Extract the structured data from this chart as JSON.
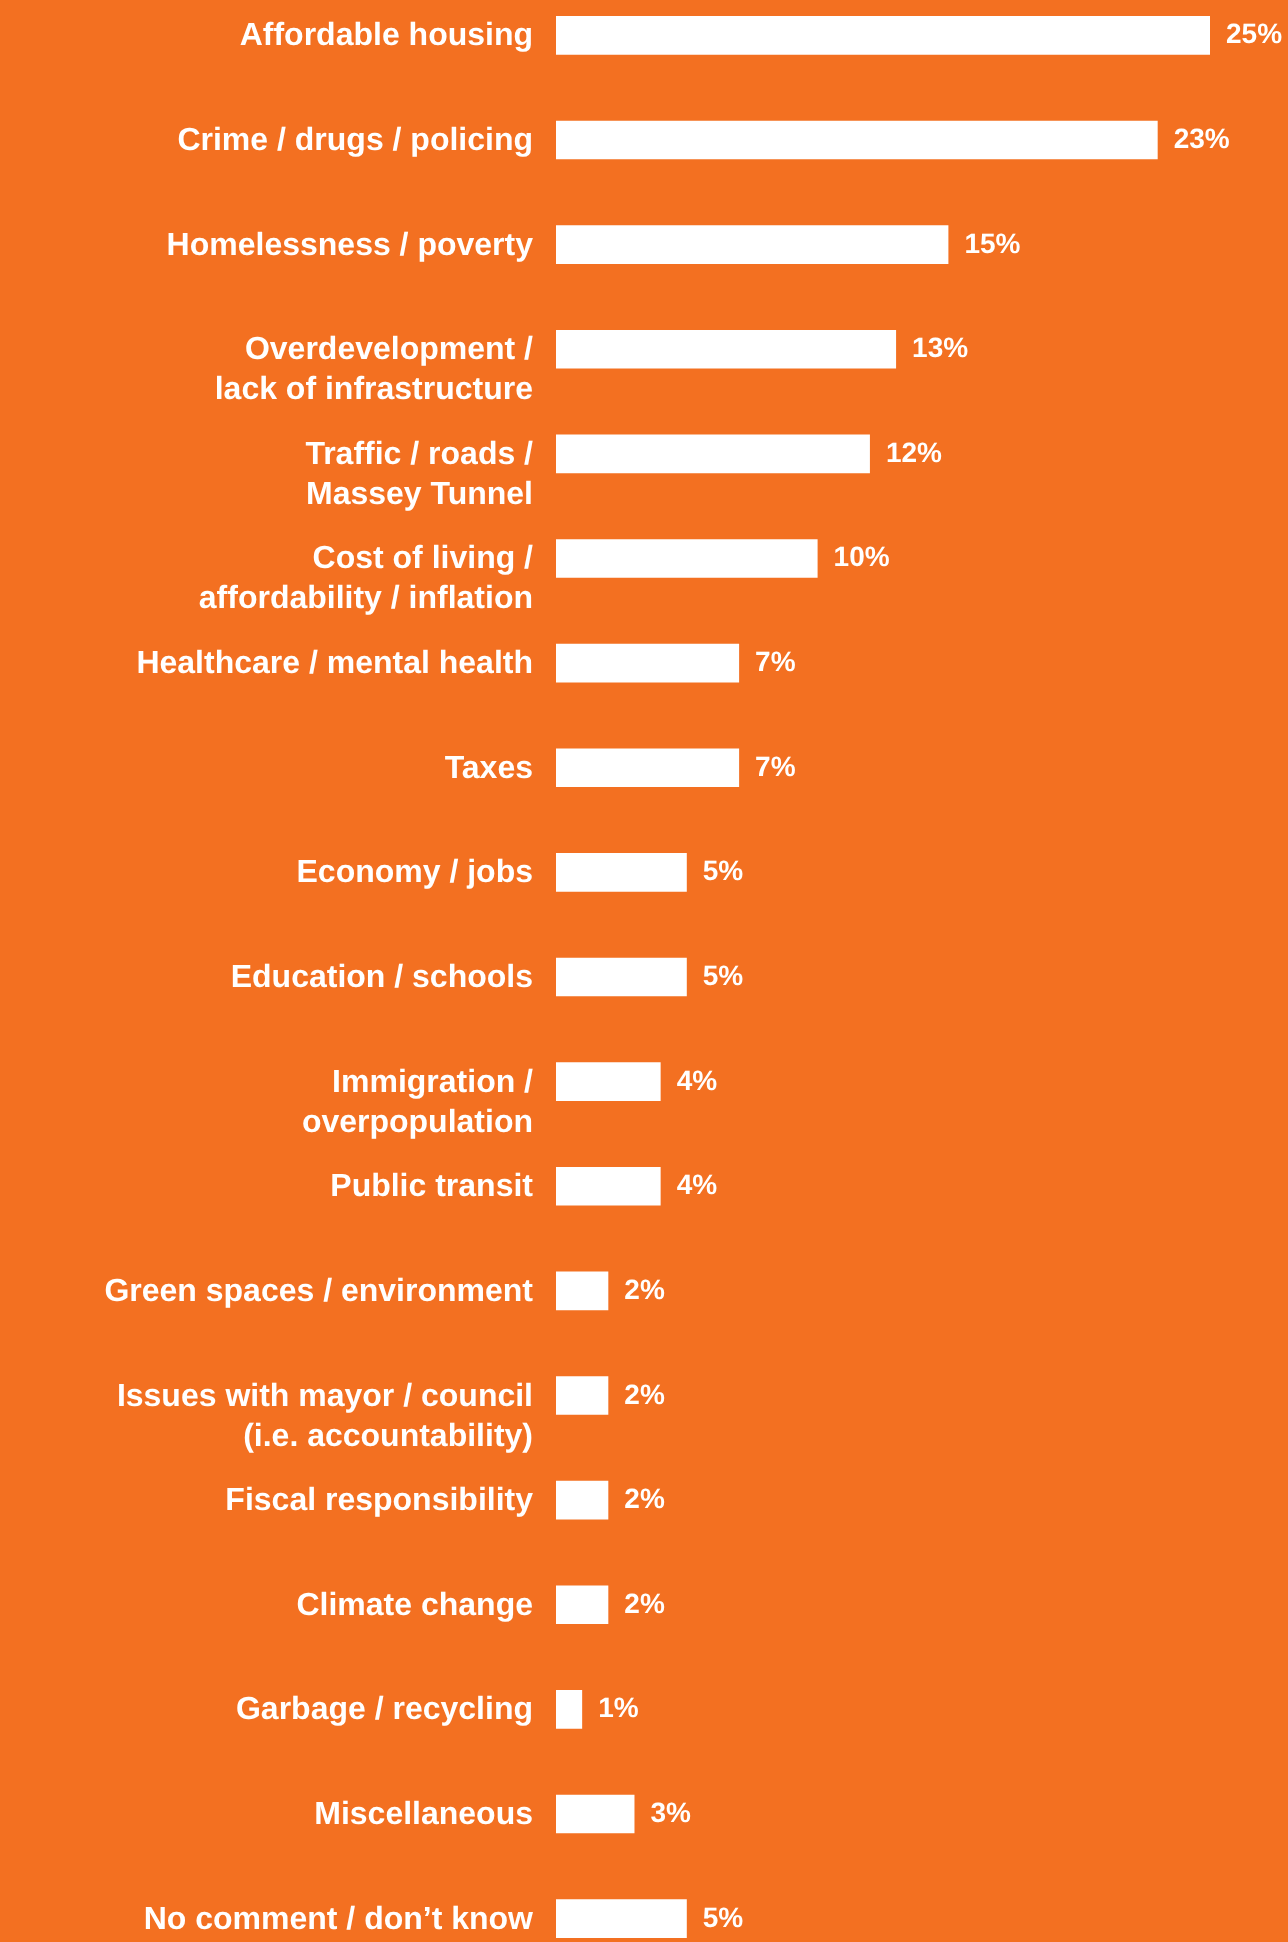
{
  "chart_data": {
    "type": "bar",
    "orientation": "horizontal",
    "data_labels": true,
    "categories": [
      "Affordable housing",
      "Crime / drugs / policing",
      "Homelessness / poverty",
      "Overdevelopment / lack of infrastructure",
      "Traffic / roads / Massey Tunnel",
      "Cost of living / affordability / inflation",
      "Healthcare / mental health",
      "Taxes",
      "Economy / jobs",
      "Education / schools",
      "Immigration / overpopulation",
      "Public transit",
      "Green spaces / environment",
      "Issues with mayor / council (i.e. accountability)",
      "Fiscal responsibility",
      "Climate change",
      "Garbage / recycling",
      "Miscellaneous",
      "No comment / don’t know"
    ],
    "values": [
      25,
      23,
      15,
      13,
      12,
      10,
      7,
      7,
      5,
      5,
      4,
      4,
      2,
      2,
      2,
      2,
      1,
      3,
      5
    ],
    "value_labels": [
      "25%",
      "23%",
      "15%",
      "13%",
      "12%",
      "10%",
      "7%",
      "7%",
      "5%",
      "5%",
      "4%",
      "4%",
      "2%",
      "2%",
      "2%",
      "2%",
      "1%",
      "3%",
      "5%"
    ],
    "color": "#ffffff"
  }
}
